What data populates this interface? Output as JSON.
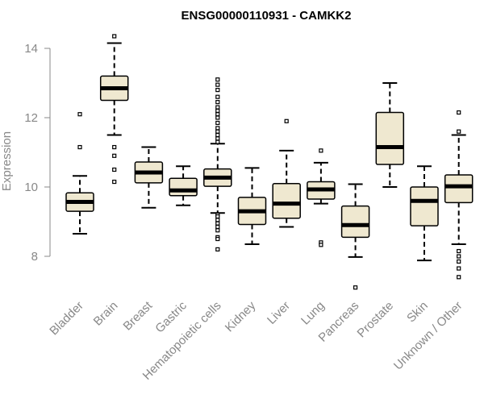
{
  "chart_data": {
    "type": "boxplot",
    "title": "ENSG00000110931 - CAMKK2",
    "xlabel": "",
    "ylabel": "Expression",
    "ylim": [
      7,
      14.5
    ],
    "yticks": [
      8,
      10,
      12,
      14
    ],
    "categories": [
      "Bladder",
      "Brain",
      "Breast",
      "Gastric",
      "Hematopoietic cells",
      "Kidney",
      "Liver",
      "Lung",
      "Pancreas",
      "Prostate",
      "Skin",
      "Unknown / Other"
    ],
    "boxes": [
      {
        "name": "Bladder",
        "whisker_low": 8.65,
        "q1": 9.3,
        "median": 9.57,
        "q3": 9.83,
        "whisker_high": 10.32,
        "outliers": [
          11.15,
          12.1
        ]
      },
      {
        "name": "Brain",
        "whisker_low": 11.5,
        "q1": 12.5,
        "median": 12.85,
        "q3": 13.2,
        "whisker_high": 14.15,
        "outliers": [
          14.35,
          11.15,
          10.9,
          10.5,
          10.15
        ]
      },
      {
        "name": "Breast",
        "whisker_low": 9.4,
        "q1": 10.12,
        "median": 10.42,
        "q3": 10.72,
        "whisker_high": 11.15,
        "outliers": []
      },
      {
        "name": "Gastric",
        "whisker_low": 9.47,
        "q1": 9.75,
        "median": 9.9,
        "q3": 10.25,
        "whisker_high": 10.6,
        "outliers": []
      },
      {
        "name": "Hematopoietic cells",
        "whisker_low": 9.25,
        "q1": 10.02,
        "median": 10.27,
        "q3": 10.52,
        "whisker_high": 11.25,
        "outliers": [
          13.1,
          12.95,
          12.8,
          12.6,
          12.45,
          12.3,
          12.2,
          12.1,
          12.0,
          11.85,
          11.7,
          11.6,
          11.5,
          11.4,
          11.3,
          9.2,
          9.15,
          9.05,
          8.95,
          8.85,
          8.75,
          8.55,
          8.5,
          8.2
        ]
      },
      {
        "name": "Kidney",
        "whisker_low": 8.35,
        "q1": 8.92,
        "median": 9.3,
        "q3": 9.7,
        "whisker_high": 10.55,
        "outliers": []
      },
      {
        "name": "Liver",
        "whisker_low": 8.85,
        "q1": 9.1,
        "median": 9.52,
        "q3": 10.1,
        "whisker_high": 11.05,
        "outliers": [
          11.9
        ]
      },
      {
        "name": "Lung",
        "whisker_low": 9.52,
        "q1": 9.65,
        "median": 9.93,
        "q3": 10.15,
        "whisker_high": 10.7,
        "outliers": [
          11.05,
          8.4,
          8.33
        ]
      },
      {
        "name": "Pancreas",
        "whisker_low": 7.98,
        "q1": 8.55,
        "median": 8.9,
        "q3": 9.45,
        "whisker_high": 10.08,
        "outliers": [
          7.1
        ]
      },
      {
        "name": "Prostate",
        "whisker_low": 10.0,
        "q1": 10.65,
        "median": 11.15,
        "q3": 12.15,
        "whisker_high": 13.0,
        "outliers": []
      },
      {
        "name": "Skin",
        "whisker_low": 7.88,
        "q1": 8.88,
        "median": 9.6,
        "q3": 10.0,
        "whisker_high": 10.6,
        "outliers": []
      },
      {
        "name": "Unknown / Other",
        "whisker_low": 8.35,
        "q1": 9.55,
        "median": 10.02,
        "q3": 10.35,
        "whisker_high": 11.5,
        "outliers": [
          12.15,
          11.6,
          8.15,
          8.0,
          7.85,
          7.65,
          7.4
        ]
      }
    ],
    "colors": {
      "box_fill": "#efe8d0",
      "stroke": "#000000",
      "axis": "#888888"
    }
  }
}
